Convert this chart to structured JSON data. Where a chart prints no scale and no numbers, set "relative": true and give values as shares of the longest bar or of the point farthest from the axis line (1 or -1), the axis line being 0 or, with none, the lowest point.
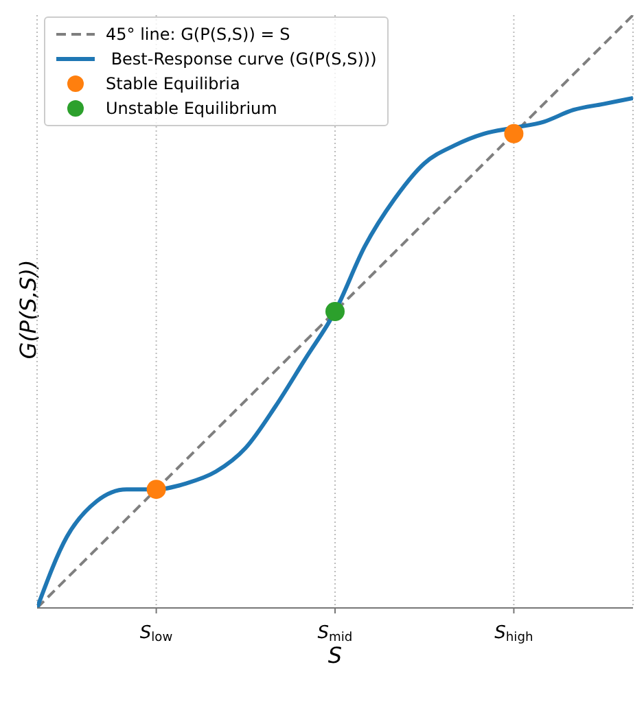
{
  "chart_data": {
    "type": "line",
    "relative": true,
    "xlabel": "S",
    "ylabel": "G(P(S,S))",
    "categories": [
      null,
      null,
      null,
      null,
      "S$_{low}$",
      null,
      null,
      null,
      null,
      null,
      "S$_{mid}$",
      null,
      null,
      null,
      null,
      null,
      "S$_{high}$",
      null,
      null,
      null,
      null
    ],
    "grid": "x",
    "legend": "top left",
    "series": [
      {
        "name": "45° line: G(P(S,S)) = S",
        "color": "#7f7f7f",
        "line_style": "dashed",
        "marker": "none",
        "values": [
          0,
          0.05,
          0.1,
          0.15,
          0.2,
          0.25,
          0.3,
          0.35,
          0.4,
          0.45,
          0.5,
          0.55,
          0.6,
          0.65,
          0.7,
          0.75,
          0.8,
          0.85,
          0.9,
          0.95,
          1
        ]
      },
      {
        "name": " Best-Response curve (G(P(S,S)))",
        "color": "#1f77b4",
        "line_style": "solid",
        "marker": "none",
        "values": [
          0,
          0.12,
          0.18,
          0.2,
          0.2,
          0.21,
          0.23,
          0.27,
          0.34,
          0.42,
          0.5,
          0.61,
          0.69,
          0.75,
          0.78,
          0.8,
          0.81,
          0.82,
          0.84,
          0.85,
          0.86
        ]
      },
      {
        "name": "Stable Equilibria",
        "type": "scatter",
        "color": "#ff7f0e",
        "marker": "circle",
        "values": [
          null,
          null,
          null,
          null,
          0.2,
          null,
          null,
          null,
          null,
          null,
          null,
          null,
          null,
          null,
          null,
          null,
          0.8,
          null,
          null,
          null,
          null
        ]
      },
      {
        "name": "Unstable Equilibrium",
        "type": "scatter",
        "color": "#2ca02c",
        "marker": "circle",
        "values": [
          null,
          null,
          null,
          null,
          null,
          null,
          null,
          null,
          null,
          null,
          0.5,
          null,
          null,
          null,
          null,
          null,
          null,
          null,
          null,
          null,
          null
        ]
      }
    ]
  }
}
